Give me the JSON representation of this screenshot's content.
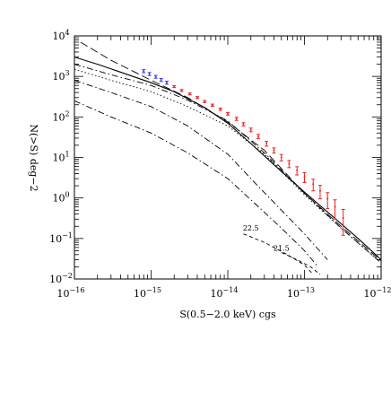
{
  "chart_data": {
    "type": "line",
    "xlabel": "S(0.5−2.0 keV) cgs",
    "ylabel": "N(>S) deg−2",
    "xscale": "log",
    "yscale": "log",
    "xlim": [
      1e-16,
      1e-12
    ],
    "ylim": [
      0.01,
      10000
    ],
    "grid": false,
    "x_tick_labels": [
      {
        "value": 1e-16,
        "base": "10",
        "exp": "−16"
      },
      {
        "value": 1e-15,
        "base": "10",
        "exp": "−15"
      },
      {
        "value": 1e-14,
        "base": "10",
        "exp": "−14"
      },
      {
        "value": 1e-13,
        "base": "10",
        "exp": "−13"
      },
      {
        "value": 1e-12,
        "base": "10",
        "exp": "−12"
      }
    ],
    "y_tick_labels": [
      {
        "value": 0.01,
        "base": "10",
        "exp": "−2"
      },
      {
        "value": 0.1,
        "base": "10",
        "exp": "−1"
      },
      {
        "value": 1,
        "base": "10",
        "exp": "0"
      },
      {
        "value": 10,
        "base": "10",
        "exp": "1"
      },
      {
        "value": 100,
        "base": "10",
        "exp": "2"
      },
      {
        "value": 1000,
        "base": "10",
        "exp": "3"
      },
      {
        "value": 10000,
        "base": "10",
        "exp": "4"
      }
    ],
    "annotations": [
      {
        "text": "22.5",
        "x": 2e-14,
        "y": 0.155
      },
      {
        "text": "21.5",
        "x": 5e-14,
        "y": 0.05
      }
    ],
    "series": [
      {
        "style": "solid",
        "color": "#000000",
        "x": [
          1e-16,
          2e-16,
          5e-16,
          1e-15,
          2e-15,
          5e-15,
          1e-14,
          2e-14,
          5e-14,
          1e-13,
          2e-13,
          5e-13,
          1e-12
        ],
        "y": [
          3000,
          2000,
          1100,
          700,
          420,
          170,
          70,
          22,
          4.5,
          1.4,
          0.45,
          0.1,
          0.03
        ]
      },
      {
        "style": "long-dash",
        "color": "#000000",
        "x": [
          1.2e-16,
          3e-16,
          1e-15,
          3e-15,
          1e-14,
          3e-14,
          1e-13,
          3e-13,
          1e-12
        ],
        "y": [
          7000,
          2500,
          800,
          300,
          75,
          15,
          1.3,
          0.2,
          0.028
        ]
      },
      {
        "style": "dash-dot",
        "color": "#000000",
        "x": [
          1e-16,
          3e-16,
          1e-15,
          3e-15,
          1e-14,
          3e-14,
          1e-13,
          3e-13,
          1e-12
        ],
        "y": [
          2000,
          1100,
          600,
          260,
          80,
          13,
          1.3,
          0.18,
          0.025
        ]
      },
      {
        "style": "dotted",
        "color": "#000000",
        "x": [
          1e-16,
          3e-16,
          1e-15,
          3e-15,
          1e-14,
          3e-14,
          1e-13,
          3e-13,
          1e-12
        ],
        "y": [
          1500,
          800,
          420,
          180,
          60,
          12,
          1.2,
          0.18,
          0.025
        ]
      },
      {
        "style": "dash-dot",
        "color": "#000000",
        "x": [
          1e-16,
          3e-16,
          1e-15,
          3e-15,
          1e-14,
          2e-14,
          5e-14,
          1e-13,
          2e-13
        ],
        "y": [
          800,
          400,
          180,
          60,
          12,
          3,
          0.5,
          0.13,
          0.03
        ]
      },
      {
        "style": "dash-dot",
        "color": "#000000",
        "x": [
          1e-16,
          3e-16,
          1e-15,
          3e-15,
          1e-14,
          2e-14,
          5e-14,
          1e-13,
          1.5e-13
        ],
        "y": [
          250,
          100,
          40,
          13,
          3,
          0.9,
          0.18,
          0.05,
          0.02
        ]
      },
      {
        "style": "short-dash",
        "color": "#000000",
        "x": [
          1.6e-14,
          3e-14,
          6e-14,
          1e-13,
          1.3e-13
        ],
        "y": [
          0.13,
          0.08,
          0.04,
          0.022,
          0.013
        ]
      },
      {
        "style": "short-dash",
        "color": "#000000",
        "x": [
          5e-14,
          8e-14,
          1.2e-13,
          1.6e-13
        ],
        "y": [
          0.045,
          0.03,
          0.02,
          0.013
        ]
      },
      {
        "style": "points",
        "color": "#3a3aee",
        "x": [
          8e-16,
          9.5e-16,
          1.15e-15,
          1.35e-15,
          1.6e-15
        ],
        "y": [
          1350,
          1150,
          980,
          820,
          700
        ],
        "yerr": [
          120,
          100,
          80,
          70,
          60
        ]
      },
      {
        "style": "points",
        "color": "#ee2222",
        "x": [
          2e-15,
          2.5e-15,
          3.2e-15,
          4e-15,
          5e-15,
          6.3e-15,
          8e-15,
          1e-14,
          1.3e-14,
          1.6e-14,
          2e-14,
          2.5e-14,
          3.2e-14,
          4e-14,
          5e-14,
          6.3e-14,
          8e-14,
          1e-13,
          1.3e-13,
          1.6e-13,
          2e-13,
          2.5e-13,
          3.2e-13
        ],
        "y": [
          560,
          450,
          370,
          300,
          240,
          195,
          155,
          120,
          90,
          66,
          48,
          33,
          22,
          15,
          10,
          7,
          4.8,
          3.3,
          2.2,
          1.5,
          0.95,
          0.6,
          0.32
        ],
        "yerr": [
          30,
          25,
          20,
          17,
          14,
          12,
          10,
          9,
          8,
          6,
          5,
          4,
          3,
          2.2,
          1.8,
          1.4,
          1.1,
          0.9,
          0.7,
          0.55,
          0.4,
          0.3,
          0.2
        ]
      }
    ]
  }
}
